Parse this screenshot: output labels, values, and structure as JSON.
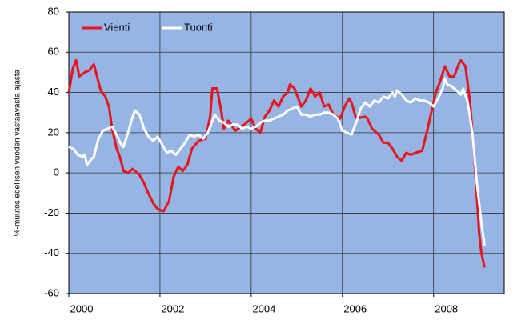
{
  "chart_data": {
    "type": "line",
    "ylabel": "%-muutos edellisen vuoden vastaavasta ajasta",
    "xlim": [
      2000,
      2009.55
    ],
    "xticks": [
      2000,
      2002,
      2004,
      2006,
      2008
    ],
    "ylim": [
      -60,
      80
    ],
    "yticks": [
      -60,
      -40,
      -20,
      0,
      20,
      40,
      60,
      80
    ],
    "grid": true,
    "legend": "top-left",
    "series": [
      {
        "name": "Vienti",
        "color": "#e8141c",
        "x": [
          2000.0,
          2000.09,
          2000.16,
          2000.23,
          2000.35,
          2000.45,
          2000.55,
          2000.63,
          2000.7,
          2000.8,
          2000.88,
          2000.95,
          2001.05,
          2001.12,
          2001.2,
          2001.3,
          2001.4,
          2001.5,
          2001.55,
          2001.65,
          2001.72,
          2001.85,
          2001.95,
          2002.08,
          2002.2,
          2002.3,
          2002.4,
          2002.5,
          2002.6,
          2002.7,
          2002.85,
          2003.0,
          2003.1,
          2003.15,
          2003.25,
          2003.35,
          2003.4,
          2003.5,
          2003.65,
          2003.85,
          2004.0,
          2004.1,
          2004.2,
          2004.3,
          2004.4,
          2004.5,
          2004.6,
          2004.7,
          2004.8,
          2004.85,
          2004.95,
          2005.1,
          2005.2,
          2005.3,
          2005.4,
          2005.5,
          2005.6,
          2005.7,
          2005.8,
          2005.95,
          2006.05,
          2006.15,
          2006.2,
          2006.3,
          2006.5,
          2006.55,
          2006.65,
          2006.8,
          2006.9,
          2007.0,
          2007.1,
          2007.2,
          2007.3,
          2007.4,
          2007.5,
          2007.6,
          2007.75,
          2007.85,
          2007.95,
          2008.05,
          2008.15,
          2008.25,
          2008.35,
          2008.45,
          2008.55,
          2008.6,
          2008.7,
          2008.8,
          2008.9,
          2009.0,
          2009.05,
          2009.12
        ],
        "values": [
          40,
          52,
          56,
          48,
          50,
          51,
          54,
          47,
          41,
          38,
          33,
          22,
          12,
          8,
          1,
          0,
          2,
          0,
          -1,
          -5,
          -9,
          -15,
          -18,
          -19,
          -14,
          -2,
          3,
          1,
          4,
          12,
          16,
          17,
          28,
          42,
          42,
          30,
          22,
          26,
          21,
          24,
          27,
          22,
          20,
          28,
          31,
          36,
          33,
          38,
          40,
          44,
          42,
          33,
          36,
          42,
          38,
          40,
          33,
          34,
          29,
          27,
          33,
          37,
          35,
          27,
          28,
          27,
          22,
          19,
          15,
          15,
          12,
          8,
          6,
          10,
          9,
          10,
          11,
          20,
          30,
          40,
          46,
          53,
          48,
          48,
          54,
          56,
          53,
          35,
          6,
          -30,
          -40,
          -47
        ]
      },
      {
        "name": "Tuonti",
        "color": "#ffffff",
        "x": [
          2000.0,
          2000.1,
          2000.2,
          2000.3,
          2000.35,
          2000.4,
          2000.5,
          2000.55,
          2000.65,
          2000.75,
          2000.85,
          2000.95,
          2001.05,
          2001.15,
          2001.2,
          2001.3,
          2001.4,
          2001.45,
          2001.55,
          2001.65,
          2001.75,
          2001.85,
          2001.95,
          2002.05,
          2002.15,
          2002.25,
          2002.35,
          2002.45,
          2002.55,
          2002.65,
          2002.75,
          2002.85,
          2002.95,
          2003.05,
          2003.15,
          2003.2,
          2003.3,
          2003.4,
          2003.5,
          2003.6,
          2003.7,
          2003.8,
          2003.9,
          2004.0,
          2004.1,
          2004.2,
          2004.3,
          2004.4,
          2004.5,
          2004.6,
          2004.7,
          2004.8,
          2004.9,
          2005.0,
          2005.1,
          2005.2,
          2005.3,
          2005.4,
          2005.5,
          2005.6,
          2005.7,
          2005.8,
          2005.9,
          2006.0,
          2006.1,
          2006.2,
          2006.3,
          2006.4,
          2006.5,
          2006.6,
          2006.7,
          2006.8,
          2006.9,
          2007.0,
          2007.1,
          2007.15,
          2007.2,
          2007.3,
          2007.4,
          2007.5,
          2007.6,
          2007.7,
          2007.8,
          2007.9,
          2008.0,
          2008.1,
          2008.2,
          2008.25,
          2008.3,
          2008.4,
          2008.5,
          2008.6,
          2008.65,
          2008.75,
          2008.85,
          2008.95,
          2009.05,
          2009.12
        ],
        "values": [
          13,
          12,
          9,
          8,
          9,
          4,
          7,
          8,
          17,
          21,
          22,
          23,
          19,
          14,
          13,
          20,
          28,
          31,
          29,
          22,
          18,
          16,
          18,
          14,
          10,
          11,
          9,
          12,
          15,
          19,
          18,
          19,
          17,
          20,
          26,
          29,
          26,
          25,
          23,
          24,
          24,
          22,
          23,
          22,
          23,
          25,
          26,
          26,
          27,
          28,
          29,
          31,
          32,
          33,
          29,
          29,
          28,
          29,
          29,
          30,
          30,
          29,
          27,
          21,
          20,
          19,
          25,
          32,
          35,
          33,
          36,
          35,
          38,
          37,
          40,
          38,
          41,
          39,
          36,
          35,
          37,
          36,
          36,
          35,
          33,
          37,
          42,
          47,
          44,
          43,
          41,
          39,
          42,
          35,
          20,
          -5,
          -25,
          -36
        ]
      }
    ]
  }
}
